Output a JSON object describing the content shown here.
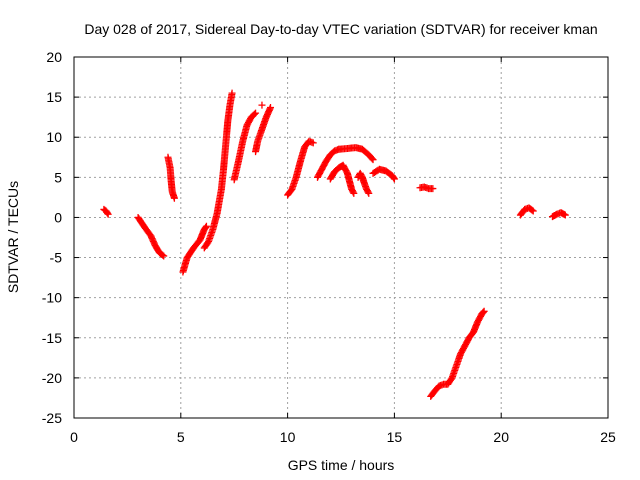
{
  "chart_data": {
    "type": "scatter",
    "title": "Day 028 of 2017, Sidereal Day-to-day VTEC variation (SDTVAR) for receiver kman",
    "xlabel": "GPS time / hours",
    "ylabel": "SDTVAR / TECUs",
    "xlim": [
      0,
      25
    ],
    "ylim": [
      -25,
      20
    ],
    "xticks": [
      "0",
      "5",
      "10",
      "15",
      "20",
      "25"
    ],
    "yticks": [
      "-25",
      "-20",
      "-15",
      "-10",
      "-5",
      "0",
      "5",
      "10",
      "15",
      "20"
    ],
    "grid": true,
    "marker": "+",
    "color": "#ff0000",
    "segments": [
      {
        "name": "arc-01",
        "points": [
          [
            1.4,
            1.0
          ],
          [
            1.5,
            0.8
          ],
          [
            1.6,
            0.4
          ]
        ]
      },
      {
        "name": "arc-02",
        "points": [
          [
            3.0,
            0.0
          ],
          [
            3.3,
            -1.2
          ],
          [
            3.6,
            -2.3
          ],
          [
            3.8,
            -3.5
          ],
          [
            4.0,
            -4.4
          ],
          [
            4.2,
            -4.8
          ]
        ]
      },
      {
        "name": "arc-03",
        "points": [
          [
            4.4,
            7.5
          ],
          [
            4.5,
            6.2
          ],
          [
            4.55,
            4.5
          ],
          [
            4.6,
            3.2
          ],
          [
            4.7,
            2.4
          ]
        ]
      },
      {
        "name": "arc-04",
        "points": [
          [
            5.1,
            -6.8
          ],
          [
            5.3,
            -5.0
          ],
          [
            5.6,
            -3.8
          ],
          [
            5.9,
            -2.8
          ],
          [
            6.1,
            -1.5
          ],
          [
            6.2,
            -1.1
          ]
        ]
      },
      {
        "name": "arc-05",
        "points": [
          [
            6.1,
            -3.8
          ],
          [
            6.3,
            -3.0
          ],
          [
            6.5,
            -1.5
          ],
          [
            6.7,
            0.5
          ],
          [
            6.9,
            3.5
          ],
          [
            7.0,
            6.0
          ],
          [
            7.1,
            9.0
          ],
          [
            7.2,
            12.0
          ],
          [
            7.3,
            14.0
          ],
          [
            7.4,
            15.5
          ]
        ]
      },
      {
        "name": "arc-06",
        "points": [
          [
            7.5,
            4.7
          ],
          [
            7.7,
            7.0
          ],
          [
            7.9,
            9.5
          ],
          [
            8.1,
            11.5
          ],
          [
            8.3,
            12.5
          ],
          [
            8.5,
            13.0
          ]
        ]
      },
      {
        "name": "arc-07",
        "points": [
          [
            8.5,
            8.2
          ],
          [
            8.6,
            9.5
          ],
          [
            8.8,
            11.0
          ],
          [
            9.0,
            12.5
          ],
          [
            9.2,
            13.7
          ]
        ]
      },
      {
        "name": "arc-08",
        "points": [
          [
            8.8,
            14.0
          ]
        ]
      },
      {
        "name": "arc-09",
        "points": [
          [
            10.0,
            2.8
          ],
          [
            10.2,
            3.5
          ],
          [
            10.4,
            5.0
          ],
          [
            10.6,
            7.0
          ],
          [
            10.8,
            8.8
          ],
          [
            11.0,
            9.5
          ],
          [
            11.2,
            9.3
          ]
        ]
      },
      {
        "name": "arc-10",
        "points": [
          [
            11.4,
            5.0
          ],
          [
            11.6,
            6.0
          ],
          [
            11.8,
            7.0
          ],
          [
            12.0,
            7.8
          ],
          [
            12.2,
            8.3
          ],
          [
            12.4,
            8.5
          ]
        ]
      },
      {
        "name": "arc-11",
        "points": [
          [
            12.0,
            4.8
          ],
          [
            12.2,
            5.7
          ],
          [
            12.4,
            6.2
          ],
          [
            12.6,
            6.5
          ],
          [
            12.8,
            5.5
          ],
          [
            12.9,
            4.5
          ],
          [
            13.0,
            3.5
          ],
          [
            13.1,
            3.0
          ]
        ]
      },
      {
        "name": "arc-12",
        "points": [
          [
            12.4,
            8.5
          ],
          [
            12.8,
            8.6
          ],
          [
            13.2,
            8.7
          ],
          [
            13.5,
            8.5
          ],
          [
            13.8,
            7.8
          ],
          [
            14.0,
            7.2
          ]
        ]
      },
      {
        "name": "arc-13",
        "points": [
          [
            13.3,
            5.0
          ],
          [
            13.4,
            5.5
          ],
          [
            13.5,
            5.0
          ],
          [
            13.6,
            4.2
          ],
          [
            13.7,
            3.5
          ],
          [
            13.8,
            3.0
          ]
        ]
      },
      {
        "name": "arc-14",
        "points": [
          [
            14.0,
            5.5
          ],
          [
            14.3,
            6.0
          ],
          [
            14.6,
            5.8
          ],
          [
            14.9,
            5.2
          ],
          [
            15.0,
            4.8
          ]
        ]
      },
      {
        "name": "arc-15",
        "points": [
          [
            16.2,
            3.7
          ],
          [
            16.4,
            3.8
          ],
          [
            16.6,
            3.6
          ],
          [
            16.8,
            3.6
          ]
        ]
      },
      {
        "name": "arc-16",
        "points": [
          [
            16.7,
            -22.3
          ],
          [
            16.9,
            -21.6
          ],
          [
            17.1,
            -21.0
          ],
          [
            17.3,
            -20.8
          ],
          [
            17.5,
            -20.8
          ],
          [
            17.7,
            -20.0
          ],
          [
            17.9,
            -18.5
          ],
          [
            18.1,
            -17.0
          ],
          [
            18.3,
            -16.0
          ],
          [
            18.5,
            -15.0
          ],
          [
            18.7,
            -14.3
          ],
          [
            18.9,
            -13.0
          ],
          [
            19.1,
            -12.0
          ],
          [
            19.2,
            -11.7
          ]
        ]
      },
      {
        "name": "arc-17",
        "points": [
          [
            20.9,
            0.3
          ],
          [
            21.1,
            1.0
          ],
          [
            21.3,
            1.2
          ],
          [
            21.5,
            0.8
          ]
        ]
      },
      {
        "name": "arc-18",
        "points": [
          [
            22.4,
            0.1
          ],
          [
            22.6,
            0.4
          ],
          [
            22.8,
            0.6
          ],
          [
            23.0,
            0.3
          ]
        ]
      }
    ]
  }
}
